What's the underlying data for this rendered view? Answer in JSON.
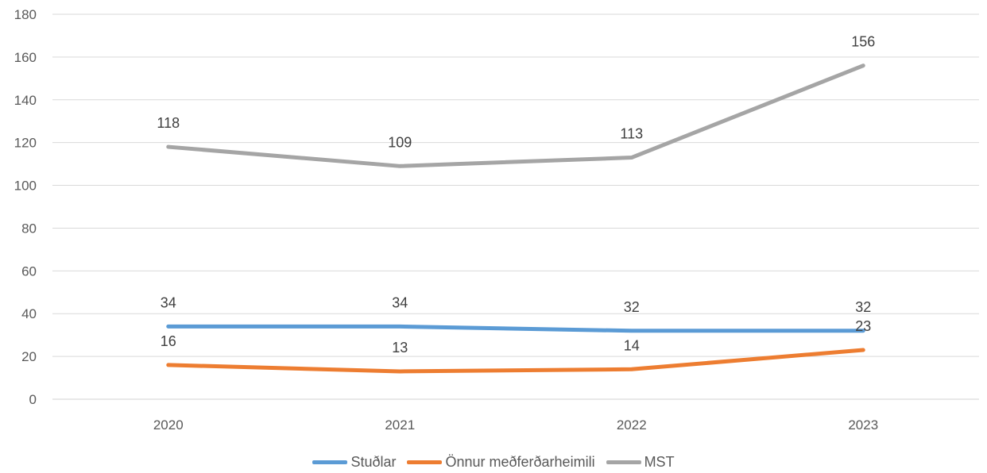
{
  "chart_data": {
    "type": "line",
    "title": "",
    "xlabel": "",
    "ylabel": "",
    "categories": [
      "2020",
      "2021",
      "2022",
      "2023"
    ],
    "ylim": [
      0,
      180
    ],
    "yticks": [
      0,
      20,
      40,
      60,
      80,
      100,
      120,
      140,
      160,
      180
    ],
    "grid": true,
    "legend": "bottom",
    "series": [
      {
        "name": "Stuðlar",
        "color": "#5b9bd5",
        "values": [
          34,
          34,
          32,
          32
        ]
      },
      {
        "name": "Önnur meðferðarheimili",
        "color": "#ed7d31",
        "values": [
          16,
          13,
          14,
          23
        ]
      },
      {
        "name": "MST",
        "color": "#a5a5a5",
        "values": [
          118,
          109,
          113,
          156
        ]
      }
    ]
  }
}
